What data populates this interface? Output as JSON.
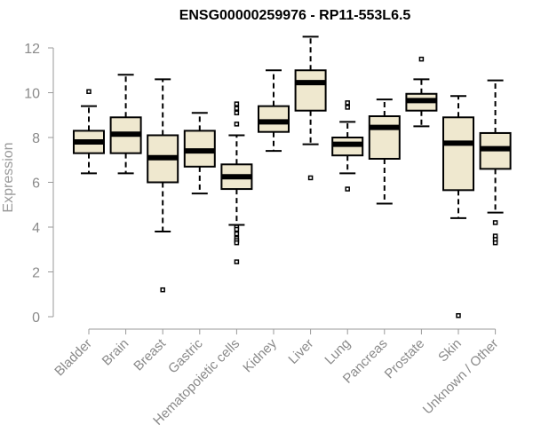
{
  "chart_data": {
    "type": "boxplot",
    "title": "ENSG00000259976 - RP11-553L6.5",
    "xlabel": "",
    "ylabel": "Expression",
    "ylim": [
      0,
      12
    ],
    "yticks": [
      0,
      2,
      4,
      6,
      8,
      10,
      12
    ],
    "grid": false,
    "categories": [
      "Bladder",
      "Brain",
      "Breast",
      "Gastric",
      "Hematopoietic cells",
      "Kidney",
      "Liver",
      "Lung",
      "Pancreas",
      "Prostate",
      "Skin",
      "Unknown / Other"
    ],
    "series": [
      {
        "name": "Bladder",
        "whisker_low": 6.4,
        "q1": 7.3,
        "median": 7.8,
        "q3": 8.3,
        "whisker_high": 9.4,
        "outliers": [
          10.05
        ]
      },
      {
        "name": "Brain",
        "whisker_low": 6.4,
        "q1": 7.3,
        "median": 8.15,
        "q3": 8.9,
        "whisker_high": 10.8,
        "outliers": []
      },
      {
        "name": "Breast",
        "whisker_low": 3.8,
        "q1": 6.0,
        "median": 7.1,
        "q3": 8.1,
        "whisker_high": 10.6,
        "outliers": [
          1.2
        ]
      },
      {
        "name": "Gastric",
        "whisker_low": 5.5,
        "q1": 6.7,
        "median": 7.4,
        "q3": 8.3,
        "whisker_high": 9.1,
        "outliers": []
      },
      {
        "name": "Hematopoietic cells",
        "whisker_low": 4.1,
        "q1": 5.7,
        "median": 6.25,
        "q3": 6.8,
        "whisker_high": 8.1,
        "outliers": [
          9.5,
          9.3,
          9.1,
          8.6,
          4.0,
          3.9,
          3.7,
          3.5,
          3.4,
          3.3,
          2.45
        ]
      },
      {
        "name": "Kidney",
        "whisker_low": 7.4,
        "q1": 8.25,
        "median": 8.7,
        "q3": 9.4,
        "whisker_high": 11.0,
        "outliers": []
      },
      {
        "name": "Liver",
        "whisker_low": 7.7,
        "q1": 9.2,
        "median": 10.45,
        "q3": 11.0,
        "whisker_high": 12.5,
        "outliers": [
          6.2
        ]
      },
      {
        "name": "Lung",
        "whisker_low": 6.4,
        "q1": 7.2,
        "median": 7.7,
        "q3": 8.0,
        "whisker_high": 8.7,
        "outliers": [
          9.55,
          9.35,
          5.7
        ]
      },
      {
        "name": "Pancreas",
        "whisker_low": 5.05,
        "q1": 7.05,
        "median": 8.45,
        "q3": 8.95,
        "whisker_high": 9.7,
        "outliers": []
      },
      {
        "name": "Prostate",
        "whisker_low": 8.5,
        "q1": 9.2,
        "median": 9.65,
        "q3": 9.95,
        "whisker_high": 10.6,
        "outliers": [
          11.5
        ]
      },
      {
        "name": "Skin",
        "whisker_low": 4.4,
        "q1": 5.65,
        "median": 7.75,
        "q3": 8.9,
        "whisker_high": 9.85,
        "outliers": [
          0.05
        ]
      },
      {
        "name": "Unknown / Other",
        "whisker_low": 4.65,
        "q1": 6.6,
        "median": 7.5,
        "q3": 8.2,
        "whisker_high": 10.55,
        "outliers": [
          4.2,
          3.6,
          3.45,
          3.3
        ]
      }
    ],
    "colors": {
      "box_fill": "#efe8cf",
      "box_stroke": "#000000",
      "median": "#000000",
      "axis": "#9a9a9a",
      "text": "#8a8a8a",
      "title": "#000000"
    }
  }
}
